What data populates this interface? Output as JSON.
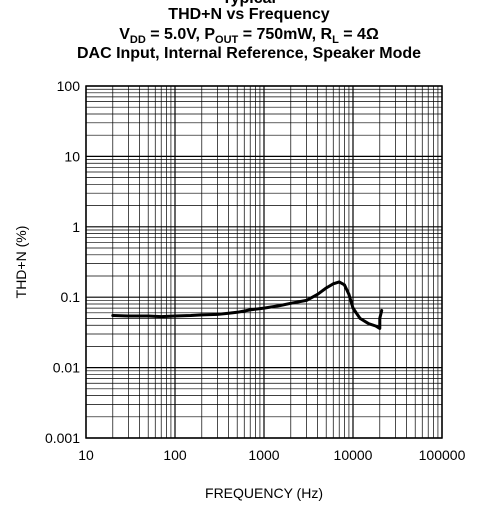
{
  "titles": {
    "line0": "Typical",
    "line1": "THD+N vs Frequency",
    "line2": {
      "v": "V",
      "v_sub": "DD",
      "v_val": " = 5.0V, ",
      "p": "P",
      "p_sub": "OUT",
      "p_val": " = 750mW, ",
      "r": "R",
      "r_sub": "L",
      "r_val": " = 4Ω"
    },
    "line3": "DAC Input, Internal Reference, Speaker Mode"
  },
  "chart_data": {
    "type": "line",
    "xlabel": "FREQUENCY (Hz)",
    "ylabel": "THD+N (%)",
    "x_scale": "log",
    "y_scale": "log",
    "xlim": [
      10,
      100000
    ],
    "ylim": [
      0.001,
      100
    ],
    "x_tick_labels": [
      "10",
      "100",
      "1000",
      "10000",
      "100000"
    ],
    "y_tick_labels": [
      "0.001",
      "0.01",
      "0.1",
      "1",
      "10",
      "100"
    ],
    "grid": true,
    "series": [
      {
        "x": [
          20,
          30,
          50,
          70,
          100,
          150,
          200,
          300,
          400,
          500,
          700,
          1000,
          1500,
          2000,
          3000,
          4000,
          5000,
          6000,
          7000,
          8000,
          9000,
          10000,
          12000,
          15000,
          18000,
          20000,
          20000,
          21000
        ],
        "y": [
          0.055,
          0.054,
          0.054,
          0.053,
          0.054,
          0.055,
          0.056,
          0.057,
          0.059,
          0.061,
          0.066,
          0.07,
          0.076,
          0.082,
          0.09,
          0.11,
          0.135,
          0.155,
          0.165,
          0.15,
          0.11,
          0.07,
          0.05,
          0.042,
          0.039,
          0.036,
          0.05,
          0.065
        ]
      }
    ]
  }
}
